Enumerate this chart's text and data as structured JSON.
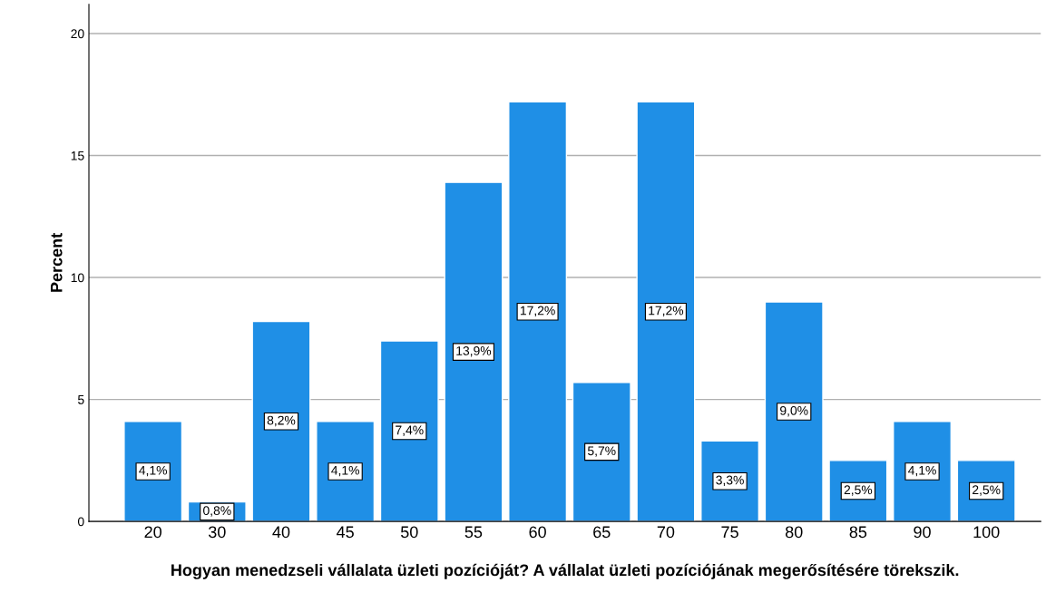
{
  "chart_data": {
    "type": "bar",
    "xlabel": "Hogyan menedzseli vállalata üzleti pozícióját? A vállalat üzleti pozíciójának megerősítésére törekszik.",
    "ylabel": "Percent",
    "categories": [
      "20",
      "30",
      "40",
      "45",
      "50",
      "55",
      "60",
      "65",
      "70",
      "75",
      "80",
      "85",
      "90",
      "100"
    ],
    "values": [
      4.1,
      0.8,
      8.2,
      4.1,
      7.4,
      13.9,
      17.2,
      5.7,
      17.2,
      3.3,
      9.0,
      2.5,
      4.1,
      2.5
    ],
    "value_labels": [
      "4,1%",
      "0,8%",
      "8,2%",
      "4,1%",
      "7,4%",
      "13,9%",
      "17,2%",
      "5,7%",
      "17,2%",
      "3,3%",
      "9,0%",
      "2,5%",
      "4,1%",
      "2,5%"
    ],
    "color": "#1f8fe6",
    "ylim": [
      0,
      21.2
    ],
    "yticks": [
      0,
      5,
      10,
      15,
      20
    ],
    "grid": "y"
  }
}
